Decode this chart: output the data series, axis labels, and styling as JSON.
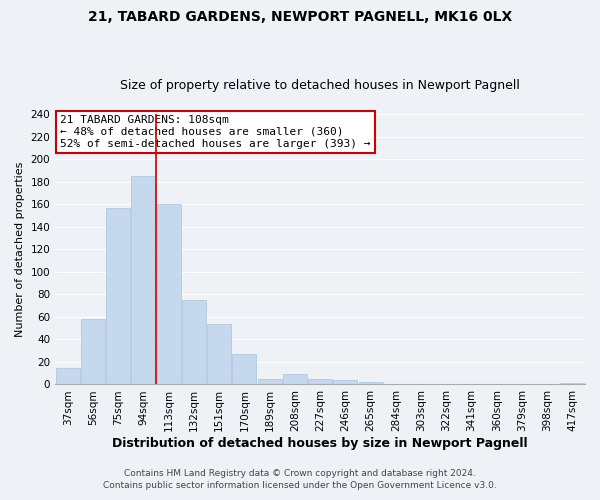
{
  "title": "21, TABARD GARDENS, NEWPORT PAGNELL, MK16 0LX",
  "subtitle": "Size of property relative to detached houses in Newport Pagnell",
  "xlabel": "Distribution of detached houses by size in Newport Pagnell",
  "ylabel": "Number of detached properties",
  "bar_color": "#c5d8ed",
  "bar_edge_color": "#a8c4de",
  "categories": [
    "37sqm",
    "56sqm",
    "75sqm",
    "94sqm",
    "113sqm",
    "132sqm",
    "151sqm",
    "170sqm",
    "189sqm",
    "208sqm",
    "227sqm",
    "246sqm",
    "265sqm",
    "284sqm",
    "303sqm",
    "322sqm",
    "341sqm",
    "360sqm",
    "379sqm",
    "398sqm",
    "417sqm"
  ],
  "values": [
    15,
    58,
    157,
    185,
    160,
    75,
    54,
    27,
    5,
    9,
    5,
    4,
    2,
    0,
    0,
    0,
    0,
    0,
    0,
    0,
    1
  ],
  "ylim": [
    0,
    240
  ],
  "yticks": [
    0,
    20,
    40,
    60,
    80,
    100,
    120,
    140,
    160,
    180,
    200,
    220,
    240
  ],
  "vline_color": "#cc0000",
  "annotation_title": "21 TABARD GARDENS: 108sqm",
  "annotation_line1": "← 48% of detached houses are smaller (360)",
  "annotation_line2": "52% of semi-detached houses are larger (393) →",
  "annotation_box_color": "#ffffff",
  "annotation_box_edge": "#cc0000",
  "footer1": "Contains HM Land Registry data © Crown copyright and database right 2024.",
  "footer2": "Contains public sector information licensed under the Open Government Licence v3.0.",
  "background_color": "#eef2f7",
  "grid_color": "#ffffff",
  "title_fontsize": 10,
  "subtitle_fontsize": 9,
  "xlabel_fontsize": 9,
  "ylabel_fontsize": 8,
  "tick_fontsize": 7.5,
  "annot_fontsize": 8,
  "footer_fontsize": 6.5
}
